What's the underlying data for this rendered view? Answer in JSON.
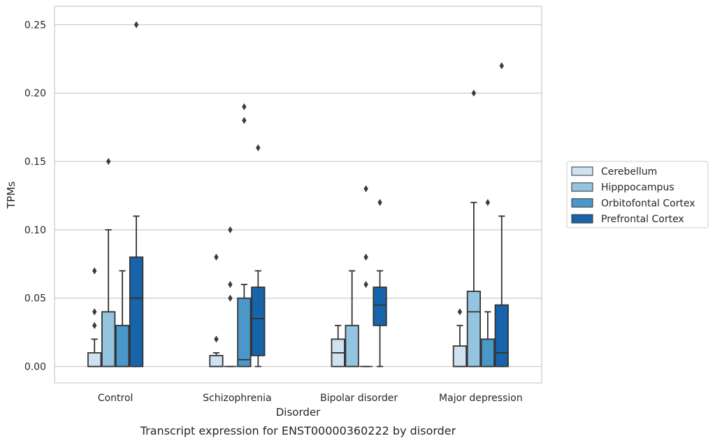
{
  "chart_data": {
    "type": "box",
    "categories": [
      "Control",
      "Schizophrenia",
      "Bipolar disorder",
      "Major depression"
    ],
    "xlabel": "Disorder",
    "ylabel": "TPMs",
    "caption": "Transcript expression for ENST00000360222 by disorder",
    "ylim": [
      -0.012,
      0.2635
    ],
    "yticks": [
      0.0,
      0.05,
      0.1,
      0.15,
      0.2,
      0.25
    ],
    "ytick_labels": [
      "0.00",
      "0.05",
      "0.10",
      "0.15",
      "0.20",
      "0.25"
    ],
    "grid": "horizontal",
    "legend_position": "right",
    "series": [
      {
        "name": "Cerebellum",
        "color": "#d0e1f2",
        "boxes": [
          {
            "q1": 0.0,
            "median": 0.0,
            "q3": 0.01,
            "whislo": 0.0,
            "whishi": 0.02,
            "fliers": [
              0.03,
              0.04,
              0.07
            ]
          },
          {
            "q1": 0.0,
            "median": 0.0,
            "q3": 0.008,
            "whislo": 0.0,
            "whishi": 0.01,
            "fliers": [
              0.02,
              0.08
            ]
          },
          {
            "q1": 0.0,
            "median": 0.01,
            "q3": 0.02,
            "whislo": 0.0,
            "whishi": 0.03,
            "fliers": []
          },
          {
            "q1": 0.0,
            "median": 0.0,
            "q3": 0.015,
            "whislo": 0.0,
            "whishi": 0.03,
            "fliers": [
              0.04
            ]
          }
        ]
      },
      {
        "name": "Hipppocampus",
        "color": "#94c4df",
        "boxes": [
          {
            "q1": 0.0,
            "median": 0.0,
            "q3": 0.04,
            "whislo": 0.0,
            "whishi": 0.1,
            "fliers": [
              0.15
            ]
          },
          {
            "q1": 0.0,
            "median": 0.0,
            "q3": 0.0,
            "whislo": 0.0,
            "whishi": 0.0,
            "fliers": [
              0.05,
              0.06,
              0.1
            ]
          },
          {
            "q1": 0.0,
            "median": 0.0,
            "q3": 0.03,
            "whislo": 0.0,
            "whishi": 0.07,
            "fliers": []
          },
          {
            "q1": 0.0,
            "median": 0.04,
            "q3": 0.055,
            "whislo": 0.0,
            "whishi": 0.12,
            "fliers": [
              0.2
            ]
          }
        ]
      },
      {
        "name": "Orbitofontal Cortex",
        "color": "#4a98c9",
        "boxes": [
          {
            "q1": 0.0,
            "median": 0.0,
            "q3": 0.03,
            "whislo": 0.0,
            "whishi": 0.07,
            "fliers": []
          },
          {
            "q1": 0.0,
            "median": 0.005,
            "q3": 0.05,
            "whislo": 0.0,
            "whishi": 0.06,
            "fliers": [
              0.18,
              0.19
            ]
          },
          {
            "q1": 0.0,
            "median": 0.0,
            "q3": 0.0,
            "whislo": 0.0,
            "whishi": 0.0,
            "fliers": [
              0.06,
              0.08,
              0.13
            ]
          },
          {
            "q1": 0.0,
            "median": 0.0,
            "q3": 0.02,
            "whislo": 0.0,
            "whishi": 0.04,
            "fliers": [
              0.12
            ]
          }
        ]
      },
      {
        "name": "Prefrontal Cortex",
        "color": "#1764ab",
        "boxes": [
          {
            "q1": 0.0,
            "median": 0.05,
            "q3": 0.08,
            "whislo": 0.0,
            "whishi": 0.11,
            "fliers": [
              0.25
            ]
          },
          {
            "q1": 0.008,
            "median": 0.035,
            "q3": 0.058,
            "whislo": 0.0,
            "whishi": 0.07,
            "fliers": [
              0.16
            ]
          },
          {
            "q1": 0.03,
            "median": 0.045,
            "q3": 0.058,
            "whislo": 0.0,
            "whishi": 0.07,
            "fliers": [
              0.12
            ]
          },
          {
            "q1": 0.0,
            "median": 0.01,
            "q3": 0.045,
            "whislo": 0.0,
            "whishi": 0.11,
            "fliers": [
              0.22
            ]
          }
        ]
      }
    ]
  }
}
